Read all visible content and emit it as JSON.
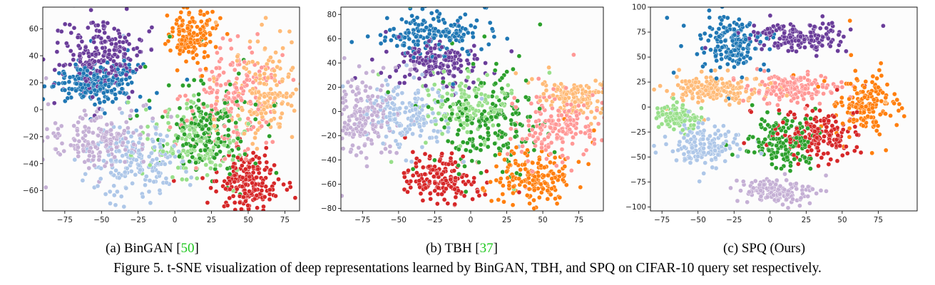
{
  "caption": "Figure 5. t-SNE visualization of deep representations learned by BinGAN, TBH, and SPQ on CIFAR-10 query set respectively.",
  "class_colors": [
    "#1f77b4",
    "#6a3d9a",
    "#aec7e8",
    "#c5b0d5",
    "#98df8a",
    "#2ca02c",
    "#d62728",
    "#ff9896",
    "#ffbb78",
    "#ff7f0e"
  ],
  "chart_data": [
    {
      "type": "scatter",
      "subcaption": {
        "prefix": "(a)  BinGAN [",
        "ref": "50",
        "suffix": "]"
      },
      "xlim": [
        -90,
        85
      ],
      "ylim": [
        -75,
        76
      ],
      "xticks": [
        -75,
        -50,
        -25,
        0,
        25,
        50,
        75
      ],
      "yticks": [
        -60,
        -40,
        -20,
        0,
        20,
        40,
        60
      ],
      "clusters": [
        {
          "color": "#6a3d9a",
          "cx": -52,
          "cy": 40,
          "sx": 13,
          "sy": 12,
          "n": 220
        },
        {
          "color": "#1f77b4",
          "cx": -52,
          "cy": 20,
          "sx": 14,
          "sy": 8,
          "n": 220
        },
        {
          "color": "#aec7e8",
          "cx": -25,
          "cy": -38,
          "sx": 16,
          "sy": 15,
          "n": 190
        },
        {
          "color": "#c5b0d5",
          "cx": -55,
          "cy": -23,
          "sx": 17,
          "sy": 9,
          "n": 190
        },
        {
          "color": "#98df8a",
          "cx": 15,
          "cy": -22,
          "sx": 16,
          "sy": 14,
          "n": 150
        },
        {
          "color": "#2ca02c",
          "cx": 22,
          "cy": -15,
          "sx": 14,
          "sy": 17,
          "n": 180
        },
        {
          "color": "#d62728",
          "cx": 50,
          "cy": -55,
          "sx": 10,
          "sy": 9,
          "n": 200
        },
        {
          "color": "#ff9896",
          "cx": 42,
          "cy": 12,
          "sx": 15,
          "sy": 20,
          "n": 190
        },
        {
          "color": "#ffbb78",
          "cx": 62,
          "cy": 10,
          "sx": 10,
          "sy": 18,
          "n": 170
        },
        {
          "color": "#ff7f0e",
          "cx": 12,
          "cy": 55,
          "sx": 9,
          "sy": 9,
          "n": 140
        }
      ]
    },
    {
      "type": "scatter",
      "subcaption": {
        "prefix": "(b)  TBH [",
        "ref": "37",
        "suffix": "]"
      },
      "xlim": [
        -90,
        92
      ],
      "ylim": [
        -82,
        86
      ],
      "xticks": [
        -75,
        -50,
        -25,
        0,
        25,
        50,
        75
      ],
      "yticks": [
        -80,
        -60,
        -40,
        -20,
        0,
        20,
        40,
        60,
        80
      ],
      "clusters": [
        {
          "color": "#1f77b4",
          "cx": -25,
          "cy": 65,
          "sx": 18,
          "sy": 9,
          "n": 180
        },
        {
          "color": "#6a3d9a",
          "cx": -25,
          "cy": 40,
          "sx": 15,
          "sy": 9,
          "n": 170
        },
        {
          "color": "#c5b0d5",
          "cx": -75,
          "cy": -5,
          "sx": 10,
          "sy": 15,
          "n": 180
        },
        {
          "color": "#aec7e8",
          "cx": -45,
          "cy": -2,
          "sx": 14,
          "sy": 12,
          "n": 170
        },
        {
          "color": "#98df8a",
          "cx": -5,
          "cy": 5,
          "sx": 14,
          "sy": 12,
          "n": 140
        },
        {
          "color": "#2ca02c",
          "cx": 12,
          "cy": -10,
          "sx": 18,
          "sy": 20,
          "n": 200
        },
        {
          "color": "#d62728",
          "cx": -20,
          "cy": -55,
          "sx": 13,
          "sy": 9,
          "n": 170
        },
        {
          "color": "#ff9896",
          "cx": 60,
          "cy": -10,
          "sx": 14,
          "sy": 15,
          "n": 180
        },
        {
          "color": "#ffbb78",
          "cx": 72,
          "cy": 12,
          "sx": 11,
          "sy": 7,
          "n": 140
        },
        {
          "color": "#ff7f0e",
          "cx": 45,
          "cy": -55,
          "sx": 12,
          "sy": 11,
          "n": 170
        }
      ]
    },
    {
      "type": "scatter",
      "subcaption": {
        "prefix": "(c)  SPQ (Ours)",
        "ref": "",
        "suffix": ""
      },
      "xlim": [
        -83,
        102
      ],
      "ylim": [
        -104,
        100
      ],
      "xticks": [
        -75,
        -50,
        -25,
        0,
        25,
        50,
        75
      ],
      "yticks": [
        -100,
        -75,
        -50,
        -25,
        0,
        25,
        50,
        75,
        100
      ],
      "clusters": [
        {
          "color": "#1f77b4",
          "cx": -25,
          "cy": 65,
          "sx": 10,
          "sy": 12,
          "n": 190
        },
        {
          "color": "#6a3d9a",
          "cx": 20,
          "cy": 70,
          "sx": 17,
          "sy": 7,
          "n": 170
        },
        {
          "color": "#ffbb78",
          "cx": -40,
          "cy": 17,
          "sx": 17,
          "sy": 6,
          "n": 190
        },
        {
          "color": "#ff9896",
          "cx": 15,
          "cy": 20,
          "sx": 14,
          "sy": 6,
          "n": 170
        },
        {
          "color": "#98df8a",
          "cx": -65,
          "cy": -10,
          "sx": 7,
          "sy": 6,
          "n": 110
        },
        {
          "color": "#aec7e8",
          "cx": -45,
          "cy": -40,
          "sx": 11,
          "sy": 10,
          "n": 150
        },
        {
          "color": "#2ca02c",
          "cx": 10,
          "cy": -35,
          "sx": 11,
          "sy": 12,
          "n": 170
        },
        {
          "color": "#d62728",
          "cx": 35,
          "cy": -28,
          "sx": 13,
          "sy": 11,
          "n": 170
        },
        {
          "color": "#ff7f0e",
          "cx": 65,
          "cy": 2,
          "sx": 10,
          "sy": 17,
          "n": 160
        },
        {
          "color": "#c5b0d5",
          "cx": 3,
          "cy": -85,
          "sx": 13,
          "sy": 6,
          "n": 140
        }
      ]
    }
  ]
}
